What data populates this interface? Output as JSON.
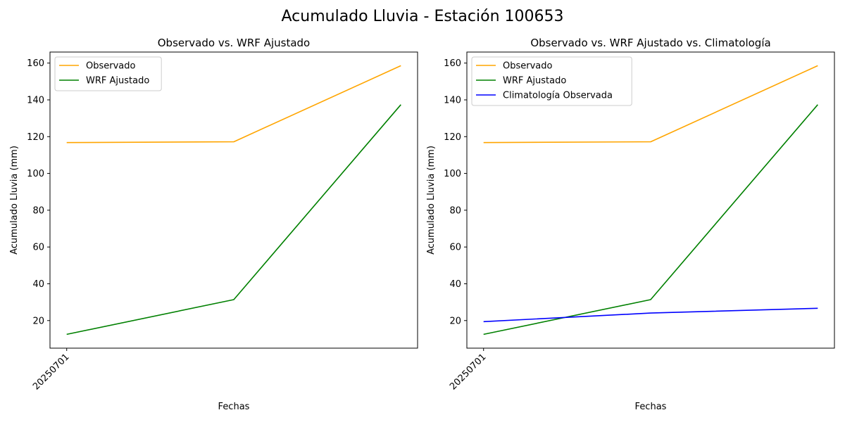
{
  "figure": {
    "suptitle": "Acumulado Lluvia - Estación 100653"
  },
  "colors": {
    "observado": "#ffa500",
    "wrf": "#008000",
    "clima": "#0000ff"
  },
  "chart_data": [
    {
      "type": "line",
      "title": "Observado vs. WRF Ajustado",
      "xlabel": "Fechas",
      "ylabel": "Acumulado Lluvia (mm)",
      "x": [
        0,
        1,
        2
      ],
      "xticks": [
        {
          "x": 0,
          "label": "20250701"
        }
      ],
      "ylim": [
        5,
        166
      ],
      "yticks": [
        20,
        40,
        60,
        80,
        100,
        120,
        140,
        160
      ],
      "legend": "upper-left",
      "grid": false,
      "series": [
        {
          "name": "Observado",
          "color": "#ffa500",
          "values": [
            116.8,
            117.2,
            158.6
          ]
        },
        {
          "name": "WRF Ajustado",
          "color": "#008000",
          "values": [
            12.5,
            31.4,
            137.4
          ]
        }
      ]
    },
    {
      "type": "line",
      "title": "Observado vs. WRF Ajustado vs. Climatología",
      "xlabel": "Fechas",
      "ylabel": "Acumulado Lluvia (mm)",
      "x": [
        0,
        1,
        2
      ],
      "xticks": [
        {
          "x": 0,
          "label": "20250701"
        }
      ],
      "ylim": [
        5,
        166
      ],
      "yticks": [
        20,
        40,
        60,
        80,
        100,
        120,
        140,
        160
      ],
      "legend": "upper-left",
      "grid": false,
      "series": [
        {
          "name": "Observado",
          "color": "#ffa500",
          "values": [
            116.8,
            117.2,
            158.6
          ]
        },
        {
          "name": "WRF Ajustado",
          "color": "#008000",
          "values": [
            12.5,
            31.4,
            137.4
          ]
        },
        {
          "name": "Climatología Observada",
          "color": "#0000ff",
          "values": [
            19.4,
            24.1,
            26.7
          ]
        }
      ]
    }
  ]
}
